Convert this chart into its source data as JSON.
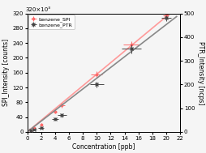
{
  "spi_x": [
    0.5,
    1.0,
    2.0,
    4.0,
    5.0,
    10.0,
    15.0,
    20.0
  ],
  "spi_y": [
    4000,
    10000,
    20000,
    55000,
    72000,
    155000,
    235000,
    315000
  ],
  "spi_xerr": [
    0.05,
    0.1,
    0.2,
    0.3,
    0.4,
    0.8,
    1.2,
    0.4
  ],
  "spi_yerr": [
    1500,
    2000,
    3000,
    5000,
    6000,
    8000,
    10000,
    6000
  ],
  "ptr_x": [
    0.5,
    1.0,
    2.0,
    4.0,
    5.0,
    10.0,
    15.0,
    20.0
  ],
  "ptr_y": [
    5,
    9,
    18,
    55,
    70,
    200,
    350,
    480
  ],
  "ptr_xerr": [
    0.2,
    0.3,
    0.4,
    0.5,
    0.6,
    1.0,
    1.4,
    0.7
  ],
  "ptr_yerr": [
    2,
    2,
    4,
    6,
    8,
    12,
    18,
    12
  ],
  "spi_color": "#ff6b6b",
  "ptr_color": "#444444",
  "line_spi_color": "#ff9999",
  "line_ptr_color": "#888888",
  "xlabel": "Concentration [ppb]",
  "ylabel_left": "SPI_Intensity [counts]",
  "ylabel_right": "PTR_Intensity [ncps]",
  "xlim": [
    0,
    22
  ],
  "ylim_left": [
    0,
    320000
  ],
  "ylim_right": [
    0,
    500
  ],
  "yticks_left": [
    0,
    40000,
    80000,
    120000,
    160000,
    200000,
    240000,
    280000,
    320000
  ],
  "ytick_labels_left": [
    "0",
    "40",
    "80",
    "120",
    "160",
    "200",
    "240",
    "280",
    "320"
  ],
  "yticks_right": [
    0,
    100,
    200,
    300,
    400,
    500
  ],
  "xticks": [
    0,
    2,
    4,
    6,
    8,
    10,
    12,
    14,
    16,
    18,
    20,
    22
  ],
  "legend_spi": "benzene_SPI",
  "legend_ptr": "benzene_PTR",
  "bg_color": "#f5f5f5",
  "offset_label": "320×10³"
}
